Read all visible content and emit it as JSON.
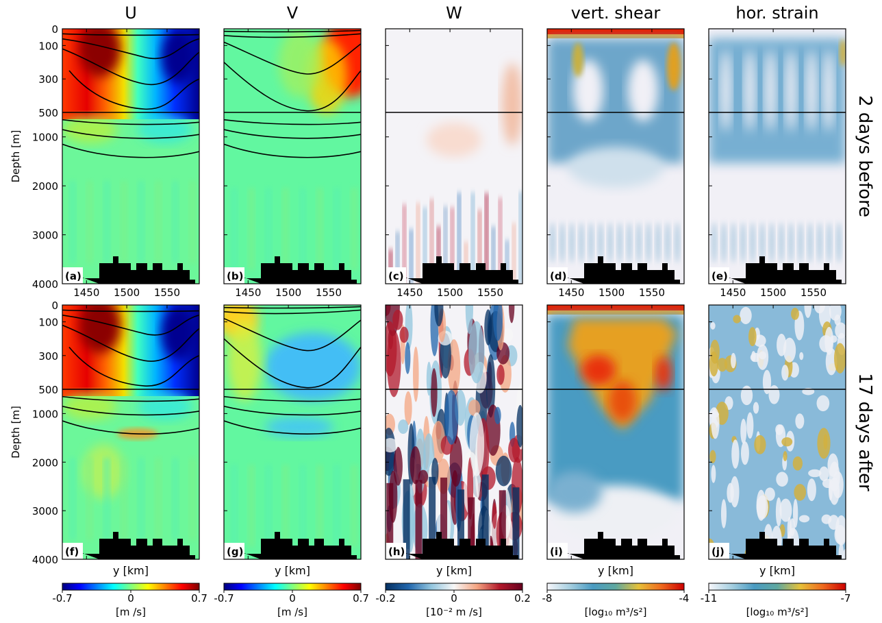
{
  "figure": {
    "row_labels": [
      "2 days before",
      "17 days after"
    ],
    "y_axis_label": "Depth [m]",
    "x_axis_label": "y [km]",
    "depth_ticks": [
      0,
      100,
      300,
      500,
      1000,
      2000,
      3000,
      4000
    ],
    "y_km_ticks": [
      1450,
      1500,
      1550
    ]
  },
  "chart_data": [
    {
      "type": "heatmap",
      "title": "U",
      "panels": [
        "(a)",
        "(f)"
      ],
      "colormap": "jet",
      "colorbar": {
        "ticks": [
          "-0.7",
          "0",
          "0.7"
        ],
        "label": "[m /s]",
        "range": [
          -0.7,
          0.7
        ]
      },
      "contour_lines": true
    },
    {
      "type": "heatmap",
      "title": "V",
      "panels": [
        "(b)",
        "(g)"
      ],
      "colormap": "jet",
      "colorbar": {
        "ticks": [
          "-0.7",
          "0",
          "0.7"
        ],
        "label": "[m /s]",
        "range": [
          -0.7,
          0.7
        ]
      },
      "contour_lines": true
    },
    {
      "type": "heatmap",
      "title": "W",
      "panels": [
        "(c)",
        "(h)"
      ],
      "colormap": "diverging blue-white-red",
      "colorbar": {
        "ticks": [
          "-0.2",
          "0",
          "0.2"
        ],
        "label": "[10⁻² m /s]",
        "range": [
          -0.2,
          0.2
        ]
      },
      "contour_lines": false
    },
    {
      "type": "heatmap",
      "title": "vert. shear",
      "panels": [
        "(d)",
        "(i)"
      ],
      "colormap": "white-blue-yellow-red",
      "colorbar": {
        "ticks": [
          "-8",
          "-4"
        ],
        "label": "[log₁₀ m³/s²]",
        "range": [
          -8,
          -4
        ]
      },
      "contour_lines": false
    },
    {
      "type": "heatmap",
      "title": "hor. strain",
      "panels": [
        "(e)",
        "(j)"
      ],
      "colormap": "white-blue-yellow-red",
      "colorbar": {
        "ticks": [
          "-11",
          "-7"
        ],
        "label": "[log₁₀ m³/s²]",
        "range": [
          -11,
          -7
        ]
      },
      "contour_lines": false
    }
  ]
}
